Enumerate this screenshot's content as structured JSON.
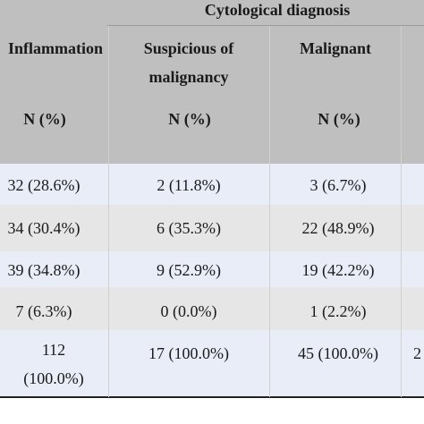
{
  "table": {
    "group_header": "Cytological diagnosis",
    "columns": [
      {
        "heading_lines": [
          "Inflammation"
        ],
        "unit": "N (%)"
      },
      {
        "heading_lines": [
          "Suspicious of",
          "malignancy"
        ],
        "unit": "N (%)"
      },
      {
        "heading_lines": [
          "Malignant"
        ],
        "unit": "N (%)"
      }
    ],
    "rows": [
      {
        "cells": [
          "32 (28.6%)",
          "2 (11.8%)",
          "3 (6.7%)"
        ]
      },
      {
        "cells": [
          "34 (30.4%)",
          "6 (35.3%)",
          "22 (48.9%)"
        ]
      },
      {
        "cells": [
          "39 (34.8%)",
          "9 (52.9%)",
          "19 (42.2%)"
        ]
      },
      {
        "cells": [
          "7 (6.3%)",
          "0 (0.0%)",
          "1 (2.2%)"
        ]
      }
    ],
    "total_row": {
      "cell0_lines": [
        "112",
        "(100.0%)"
      ],
      "cell1": "17 (100.0%)",
      "cell2": "45 (100.0%)",
      "cell3_partial": "2"
    },
    "colors": {
      "header_bg": "#bfbfbf",
      "row_blue": "#e9edf7",
      "row_gray": "#e6e6e6"
    }
  }
}
